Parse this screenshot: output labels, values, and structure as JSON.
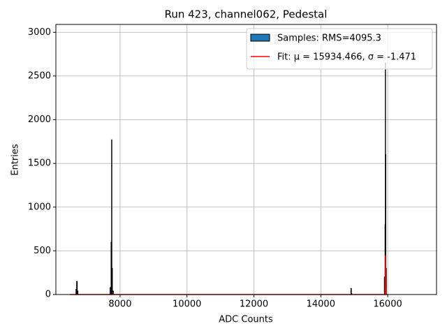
{
  "chart_data": {
    "type": "histogram",
    "title": "Run 423, channel062, Pedestal",
    "x_label": "ADC Counts",
    "y_label": "Entries",
    "hist_name": "Samples: RMS=4095.3",
    "color": "#1f77b4",
    "edge_color": "#000000",
    "bins": [
      6500,
      6680,
      6700,
      6720,
      6740,
      7700,
      7730,
      7745,
      7755,
      7770,
      7800,
      14900,
      14915,
      14930,
      15900,
      15920,
      15928,
      15936,
      15944,
      15960,
      16960
    ],
    "counts": [
      0,
      60,
      150,
      40,
      0,
      80,
      600,
      1770,
      300,
      40,
      0,
      70,
      10,
      0,
      200,
      800,
      2650,
      1600,
      300,
      0
    ],
    "fit": {
      "name": "Fit: μ = 15934.466, σ = -1.471",
      "color": "#ff0000",
      "x": [
        6500,
        15925,
        15930,
        15934,
        15938,
        15943,
        16000
      ],
      "values": [
        0,
        0,
        100,
        450,
        100,
        0,
        0
      ]
    },
    "xlim": [
      6080,
      17460
    ],
    "ylim": [
      0,
      3090
    ],
    "xticks": [
      8000,
      10000,
      12000,
      14000,
      16000
    ],
    "yticks": [
      0,
      500,
      1000,
      1500,
      2000,
      2500,
      3000
    ],
    "grid": true,
    "legend": "upper right"
  }
}
